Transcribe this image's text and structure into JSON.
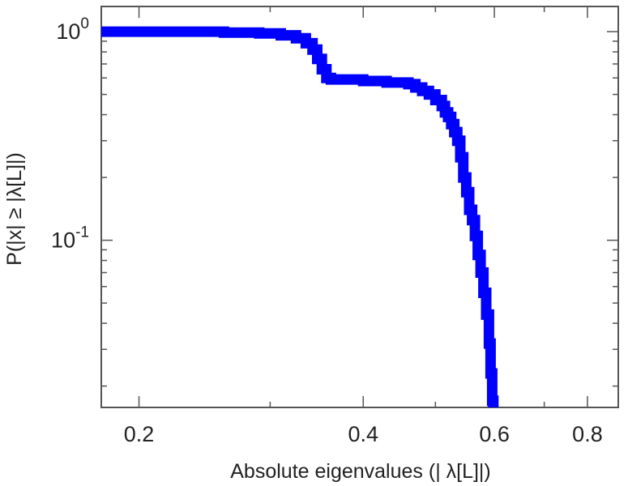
{
  "chart_data": {
    "type": "line",
    "xlabel": "Absolute eigenvalues (|      λ[L]|)",
    "ylabel": "P(|x|  ≥ |λ[L]|)",
    "xscale": "log",
    "yscale": "log",
    "xlim": [
      0.178,
      0.88
    ],
    "ylim": [
      0.0158,
      1.32
    ],
    "x_ticks": [
      {
        "value": 0.2,
        "label": "0.2"
      },
      {
        "value": 0.4,
        "label": "0.4"
      },
      {
        "value": 0.6,
        "label": "0.6"
      },
      {
        "value": 0.8,
        "label": "0.8"
      }
    ],
    "y_ticks": [
      {
        "value": 1,
        "base": "10",
        "exp": "0"
      },
      {
        "value": 0.1,
        "base": "10",
        "exp": "-1"
      }
    ],
    "grid": false,
    "legend": "none",
    "series": [
      {
        "color": "#0000ff",
        "x": [
          0.178,
          0.22,
          0.26,
          0.29,
          0.31,
          0.325,
          0.335,
          0.342,
          0.347,
          0.352,
          0.357,
          0.362,
          0.38,
          0.4,
          0.43,
          0.46,
          0.47,
          0.48,
          0.49,
          0.5,
          0.51,
          0.515,
          0.52,
          0.525,
          0.53,
          0.535,
          0.54,
          0.545,
          0.55,
          0.555,
          0.56,
          0.565,
          0.57,
          0.575,
          0.58,
          0.585,
          0.59,
          0.593,
          0.596,
          0.598
        ],
        "y": [
          1.0,
          1.0,
          0.99,
          0.98,
          0.96,
          0.93,
          0.88,
          0.82,
          0.74,
          0.66,
          0.6,
          0.59,
          0.59,
          0.58,
          0.57,
          0.56,
          0.54,
          0.52,
          0.5,
          0.47,
          0.44,
          0.41,
          0.39,
          0.36,
          0.33,
          0.3,
          0.25,
          0.2,
          0.17,
          0.14,
          0.125,
          0.105,
          0.085,
          0.07,
          0.056,
          0.044,
          0.032,
          0.023,
          0.017,
          0.0158
        ]
      }
    ]
  }
}
